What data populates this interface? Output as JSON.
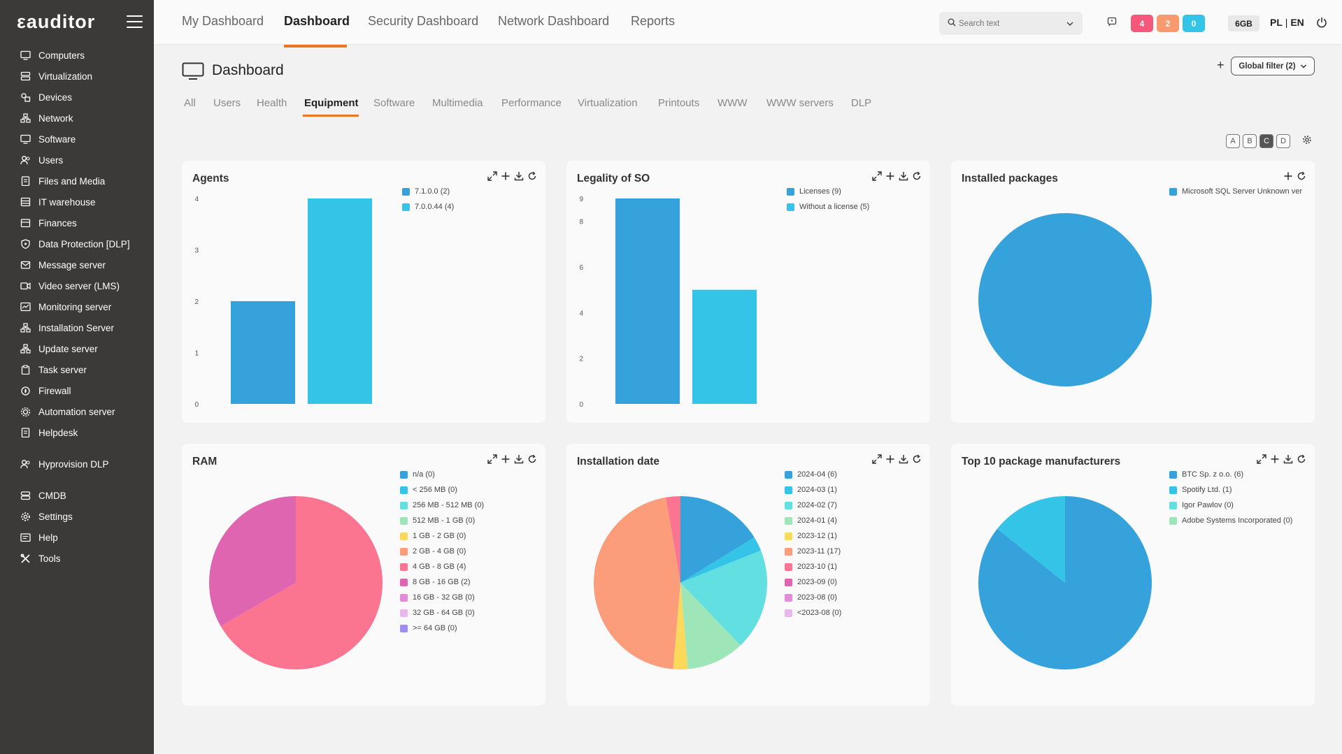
{
  "app": {
    "logo": "εauditor"
  },
  "sidebar": {
    "items": [
      {
        "label": "Computers",
        "icon": "monitor-icon"
      },
      {
        "label": "Virtualization",
        "icon": "server-icon"
      },
      {
        "label": "Devices",
        "icon": "devices-icon"
      },
      {
        "label": "Network",
        "icon": "network-icon"
      },
      {
        "label": "Software",
        "icon": "monitor-icon"
      },
      {
        "label": "Users",
        "icon": "users-icon"
      },
      {
        "label": "Files and Media",
        "icon": "file-icon"
      },
      {
        "label": "IT warehouse",
        "icon": "warehouse-icon"
      },
      {
        "label": "Finances",
        "icon": "finance-icon"
      },
      {
        "label": "Data Protection [DLP]",
        "icon": "shield-icon"
      },
      {
        "label": "Message server",
        "icon": "mail-icon"
      },
      {
        "label": "Video server (LMS)",
        "icon": "video-icon"
      },
      {
        "label": "Monitoring server",
        "icon": "monitoring-icon"
      },
      {
        "label": "Installation Server",
        "icon": "network-icon"
      },
      {
        "label": "Update server",
        "icon": "network-icon"
      },
      {
        "label": "Task server",
        "icon": "clipboard-icon"
      },
      {
        "label": "Firewall",
        "icon": "firewall-icon"
      },
      {
        "label": "Automation server",
        "icon": "automation-icon"
      },
      {
        "label": "Helpdesk",
        "icon": "file-icon"
      },
      {
        "label": "Hyprovision DLP",
        "icon": "users-icon"
      },
      {
        "label": "CMDB",
        "icon": "database-icon"
      },
      {
        "label": "Settings",
        "icon": "gear-icon"
      },
      {
        "label": "Help",
        "icon": "help-icon"
      },
      {
        "label": "Tools",
        "icon": "tools-icon"
      }
    ]
  },
  "header": {
    "tabs": [
      {
        "label": "My Dashboard"
      },
      {
        "label": "Dashboard"
      },
      {
        "label": "Security Dashboard"
      },
      {
        "label": "Network Dashboard"
      },
      {
        "label": "Reports"
      }
    ],
    "search_placeholder": "Search text",
    "badges": [
      {
        "value": "4",
        "color": "#f5587b"
      },
      {
        "value": "2",
        "color": "#f99a6e"
      },
      {
        "value": "0",
        "color": "#33c4e8"
      }
    ],
    "memory": "6GB",
    "lang_pl": "PL",
    "lang_sep": " | ",
    "lang_en": "EN"
  },
  "page": {
    "title": "Dashboard",
    "global_filter": "Global filter (2)",
    "global_plus": "+",
    "sub_tabs": [
      {
        "label": "All"
      },
      {
        "label": "Users"
      },
      {
        "label": "Health"
      },
      {
        "label": "Equipment"
      },
      {
        "label": "Software"
      },
      {
        "label": "Multimedia"
      },
      {
        "label": "Performance"
      },
      {
        "label": "Virtualization"
      },
      {
        "label": "Printouts"
      },
      {
        "label": "WWW"
      },
      {
        "label": "WWW servers"
      },
      {
        "label": "DLP"
      }
    ],
    "layout_buttons": [
      "A",
      "B",
      "C",
      "D"
    ]
  },
  "chart_data": [
    {
      "type": "bar",
      "title": "Agents",
      "categories": [
        "7.1.0.0",
        "7.0.0.44"
      ],
      "values": [
        2,
        4
      ],
      "legend": [
        "7.1.0.0 (2)",
        "7.0.0.44 (4)"
      ],
      "colors": [
        "#36a2db",
        "#33c4e8"
      ],
      "yticks": [
        "0",
        "1",
        "2",
        "3",
        "4"
      ],
      "ylim": [
        0,
        4
      ]
    },
    {
      "type": "bar",
      "title": "Legality of SO",
      "categories": [
        "Licenses",
        "Without a license"
      ],
      "values": [
        9,
        5
      ],
      "legend": [
        "Licenses (9)",
        "Without a license (5)"
      ],
      "colors": [
        "#36a2db",
        "#33c4e8"
      ],
      "yticks": [
        "0",
        "2",
        "4",
        "6",
        "8",
        "9"
      ],
      "ylim": [
        0,
        9
      ]
    },
    {
      "type": "pie",
      "title": "Installed packages",
      "categories": [
        "Microsoft SQL Server Unknown ver"
      ],
      "values": [
        1
      ],
      "legend": [
        "Microsoft SQL Server Unknown ver"
      ],
      "colors": [
        "#36a2db"
      ]
    },
    {
      "type": "pie",
      "title": "RAM",
      "categories": [
        "n/a",
        "< 256 MB",
        "256 MB - 512 MB",
        "512 MB - 1 GB",
        "1 GB - 2 GB",
        "2 GB - 4 GB",
        "4 GB - 8 GB",
        "8 GB - 16 GB",
        "16 GB - 32 GB",
        "32 GB - 64 GB",
        ">= 64 GB"
      ],
      "values": [
        0,
        0,
        0,
        0,
        0,
        0,
        4,
        2,
        0,
        0,
        0
      ],
      "legend": [
        "n/a (0)",
        "< 256 MB (0)",
        "256 MB - 512 MB (0)",
        "512 MB - 1 GB (0)",
        "1 GB - 2 GB (0)",
        "2 GB - 4 GB (0)",
        "4 GB - 8 GB (4)",
        "8 GB - 16 GB (2)",
        "16 GB - 32 GB (0)",
        "32 GB - 64 GB (0)",
        ">= 64 GB (0)"
      ],
      "colors": [
        "#36a2db",
        "#33c4e8",
        "#62dfe0",
        "#9ee6b8",
        "#fcd95b",
        "#fb9d7a",
        "#fb7591",
        "#e065b0",
        "#e48bd9",
        "#e8b8ea",
        "#9c8ef2"
      ]
    },
    {
      "type": "pie",
      "title": "Installation date",
      "categories": [
        "2024-04",
        "2024-03",
        "2024-02",
        "2024-01",
        "2023-12",
        "2023-11",
        "2023-10",
        "2023-09",
        "2023-08",
        "<2023-08"
      ],
      "values": [
        6,
        1,
        7,
        4,
        1,
        17,
        1,
        0,
        0,
        0
      ],
      "legend": [
        "2024-04 (6)",
        "2024-03 (1)",
        "2024-02 (7)",
        "2024-01 (4)",
        "2023-12 (1)",
        "2023-11 (17)",
        "2023-10 (1)",
        "2023-09 (0)",
        "2023-08 (0)",
        "<2023-08 (0)"
      ],
      "colors": [
        "#36a2db",
        "#33c4e8",
        "#62dfe0",
        "#9ee6b8",
        "#fcd95b",
        "#fb9d7a",
        "#fb7591",
        "#e065b0",
        "#e48bd9",
        "#e8b8ea"
      ]
    },
    {
      "type": "pie",
      "title": "Top 10 package manufacturers",
      "categories": [
        "BTC Sp. z o.o.",
        "Spotify Ltd.",
        "Igor Pawlov",
        "Adobe Systems Incorporated"
      ],
      "values": [
        6,
        1,
        0,
        0
      ],
      "legend": [
        "BTC Sp. z o.o. (6)",
        "Spotify Ltd. (1)",
        "Igor Pawlov (0)",
        "Adobe Systems Incorporated (0)"
      ],
      "colors": [
        "#36a2db",
        "#33c4e8",
        "#62dfe0",
        "#9ee6b8"
      ]
    }
  ]
}
